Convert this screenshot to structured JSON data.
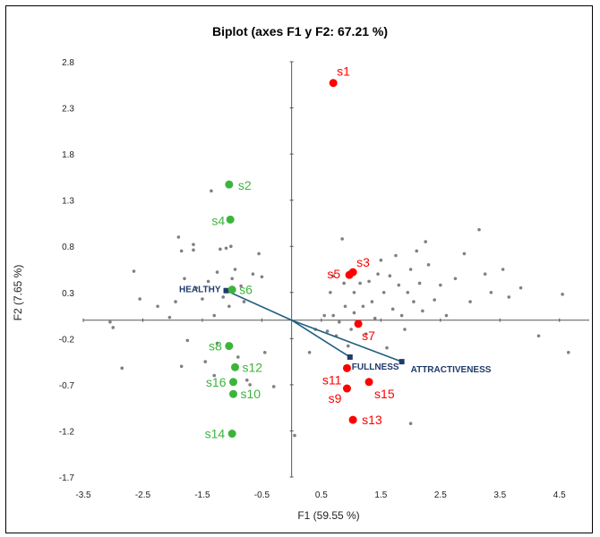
{
  "chart_data": {
    "type": "scatter",
    "title": "Biplot (axes F1 y F2: 67.21 %)",
    "xlabel": "F1 (59.55 %)",
    "ylabel": "F2 (7.65 %)",
    "xlim": [
      -3.5,
      5.0
    ],
    "ylim": [
      -1.7,
      2.8
    ],
    "xticks": [
      "-3.5",
      "-2.5",
      "-1.5",
      "-0.5",
      "0.5",
      "1.5",
      "2.5",
      "3.5",
      "4.5"
    ],
    "yticks": [
      "2.8",
      "2.3",
      "1.8",
      "1.3",
      "0.8",
      "0.3",
      "-0.2",
      "-0.7",
      "-1.2",
      "-1.7"
    ],
    "colors": {
      "red": "#ff0000",
      "green": "#3cb43c",
      "grey": "#808080",
      "vector": "#1f5f7f"
    },
    "series": [
      {
        "group": "red",
        "points": [
          {
            "label": "s1",
            "x": 0.7,
            "y": 2.57
          },
          {
            "label": "s3",
            "x": 1.03,
            "y": 0.52
          },
          {
            "label": "s5",
            "x": 0.97,
            "y": 0.49
          },
          {
            "label": "s7",
            "x": 1.12,
            "y": -0.04
          },
          {
            "label": "s11",
            "x": 0.93,
            "y": -0.52
          },
          {
            "label": "s9",
            "x": 0.93,
            "y": -0.74
          },
          {
            "label": "s15",
            "x": 1.3,
            "y": -0.67
          },
          {
            "label": "s13",
            "x": 1.03,
            "y": -1.08
          }
        ]
      },
      {
        "group": "green",
        "points": [
          {
            "label": "s2",
            "x": -1.05,
            "y": 1.47
          },
          {
            "label": "s4",
            "x": -1.03,
            "y": 1.09
          },
          {
            "label": "s6",
            "x": -1.0,
            "y": 0.33
          },
          {
            "label": "s8",
            "x": -1.05,
            "y": -0.28
          },
          {
            "label": "s12",
            "x": -0.95,
            "y": -0.51
          },
          {
            "label": "s16",
            "x": -0.98,
            "y": -0.67
          },
          {
            "label": "s10",
            "x": -0.98,
            "y": -0.8
          },
          {
            "label": "s14",
            "x": -1.0,
            "y": -1.23
          }
        ]
      },
      {
        "group": "grey",
        "points": [
          {
            "x": -3.05,
            "y": -0.02
          },
          {
            "x": -3.0,
            "y": -0.08
          },
          {
            "x": -2.85,
            "y": -0.52
          },
          {
            "x": -2.65,
            "y": 0.53
          },
          {
            "x": -2.55,
            "y": 0.23
          },
          {
            "x": -2.25,
            "y": 0.15
          },
          {
            "x": -2.05,
            "y": 0.03
          },
          {
            "x": -1.95,
            "y": 0.2
          },
          {
            "x": -1.9,
            "y": 0.9
          },
          {
            "x": -1.85,
            "y": 0.75
          },
          {
            "x": -1.85,
            "y": -0.5
          },
          {
            "x": -1.8,
            "y": 0.45
          },
          {
            "x": -1.75,
            "y": -0.22
          },
          {
            "x": -1.65,
            "y": 0.82
          },
          {
            "x": -1.65,
            "y": 0.76
          },
          {
            "x": -1.6,
            "y": 0.35
          },
          {
            "x": -1.5,
            "y": 0.23
          },
          {
            "x": -1.45,
            "y": -0.45
          },
          {
            "x": -1.4,
            "y": 0.42
          },
          {
            "x": -1.35,
            "y": 1.4
          },
          {
            "x": -1.3,
            "y": 0.05
          },
          {
            "x": -1.3,
            "y": -0.6
          },
          {
            "x": -1.25,
            "y": 0.52
          },
          {
            "x": -1.25,
            "y": -0.25
          },
          {
            "x": -1.2,
            "y": 0.77
          },
          {
            "x": -1.15,
            "y": 0.25
          },
          {
            "x": -1.1,
            "y": 0.78
          },
          {
            "x": -1.05,
            "y": 0.15
          },
          {
            "x": -1.02,
            "y": 0.8
          },
          {
            "x": -1.0,
            "y": 0.45
          },
          {
            "x": -0.95,
            "y": 0.55
          },
          {
            "x": -0.9,
            "y": -0.4
          },
          {
            "x": -0.85,
            "y": 0.37
          },
          {
            "x": -0.8,
            "y": 0.2
          },
          {
            "x": -0.75,
            "y": -0.65
          },
          {
            "x": -0.7,
            "y": -0.7
          },
          {
            "x": -0.65,
            "y": 0.5
          },
          {
            "x": -0.55,
            "y": 0.72
          },
          {
            "x": -0.5,
            "y": 0.47
          },
          {
            "x": -0.45,
            "y": -0.35
          },
          {
            "x": -0.3,
            "y": -0.72
          },
          {
            "x": 0.05,
            "y": -1.25
          },
          {
            "x": 0.3,
            "y": -0.35
          },
          {
            "x": 0.4,
            "y": -0.1
          },
          {
            "x": 0.55,
            "y": 0.05
          },
          {
            "x": 0.6,
            "y": -0.12
          },
          {
            "x": 0.65,
            "y": 0.3
          },
          {
            "x": 0.7,
            "y": 0.48
          },
          {
            "x": 0.7,
            "y": 0.05
          },
          {
            "x": 0.75,
            "y": -0.17
          },
          {
            "x": 0.8,
            "y": -0.02
          },
          {
            "x": 0.85,
            "y": 0.88
          },
          {
            "x": 0.88,
            "y": 0.4
          },
          {
            "x": 0.9,
            "y": 0.15
          },
          {
            "x": 0.95,
            "y": -0.28
          },
          {
            "x": 1.0,
            "y": -0.1
          },
          {
            "x": 1.05,
            "y": 0.3
          },
          {
            "x": 1.05,
            "y": 0.08
          },
          {
            "x": 1.15,
            "y": 0.4
          },
          {
            "x": 1.2,
            "y": 0.15
          },
          {
            "x": 1.25,
            "y": -0.15
          },
          {
            "x": 1.3,
            "y": 0.42
          },
          {
            "x": 1.35,
            "y": 0.2
          },
          {
            "x": 1.4,
            "y": 0.02
          },
          {
            "x": 1.45,
            "y": 0.5
          },
          {
            "x": 1.5,
            "y": 0.65
          },
          {
            "x": 1.55,
            "y": 0.3
          },
          {
            "x": 1.6,
            "y": -0.3
          },
          {
            "x": 1.65,
            "y": 0.48
          },
          {
            "x": 1.7,
            "y": 0.12
          },
          {
            "x": 1.75,
            "y": 0.7
          },
          {
            "x": 1.8,
            "y": 0.38
          },
          {
            "x": 1.85,
            "y": 0.05
          },
          {
            "x": 1.9,
            "y": -0.1
          },
          {
            "x": 1.95,
            "y": 0.3
          },
          {
            "x": 2.0,
            "y": 0.55
          },
          {
            "x": 2.0,
            "y": -1.12
          },
          {
            "x": 2.05,
            "y": 0.2
          },
          {
            "x": 2.1,
            "y": 0.75
          },
          {
            "x": 2.15,
            "y": 0.4
          },
          {
            "x": 2.2,
            "y": 0.1
          },
          {
            "x": 2.25,
            "y": 0.85
          },
          {
            "x": 2.3,
            "y": 0.6
          },
          {
            "x": 2.4,
            "y": 0.22
          },
          {
            "x": 2.5,
            "y": 0.38
          },
          {
            "x": 2.6,
            "y": 0.05
          },
          {
            "x": 2.75,
            "y": 0.45
          },
          {
            "x": 2.9,
            "y": 0.72
          },
          {
            "x": 3.0,
            "y": 0.2
          },
          {
            "x": 3.15,
            "y": 0.98
          },
          {
            "x": 3.25,
            "y": 0.5
          },
          {
            "x": 3.35,
            "y": 0.3
          },
          {
            "x": 3.55,
            "y": 0.55
          },
          {
            "x": 3.65,
            "y": 0.25
          },
          {
            "x": 3.85,
            "y": 0.35
          },
          {
            "x": 4.15,
            "y": -0.17
          },
          {
            "x": 4.55,
            "y": 0.28
          },
          {
            "x": 4.65,
            "y": -0.35
          }
        ]
      }
    ],
    "vectors": [
      {
        "label": "HEALTHY",
        "x": -1.1,
        "y": 0.32
      },
      {
        "label": "FULLNESS",
        "x": 0.98,
        "y": -0.4
      },
      {
        "label": "ATTRACTIVENESS",
        "x": 1.85,
        "y": -0.45
      }
    ]
  }
}
